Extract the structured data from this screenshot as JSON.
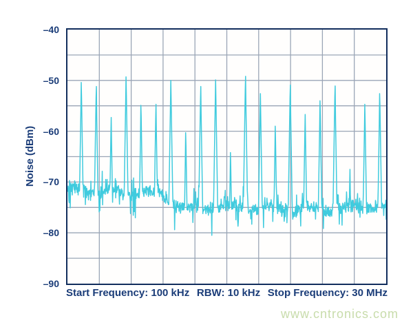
{
  "chart_data": {
    "type": "line",
    "title": "",
    "ylabel": "Noise (dBm)",
    "xlabel": "",
    "ylim": [
      -90,
      -40
    ],
    "y_tick_labels": [
      "–40",
      "–50",
      "–60",
      "–70",
      "–80",
      "–90"
    ],
    "y_divisions": 10,
    "x_divisions": 10,
    "grid": true,
    "x_range_mhz": [
      0.1,
      30
    ],
    "caption": {
      "start": "Start Frequency: 100 kHz",
      "rbw": "RBW: 10 kHz",
      "stop": "Stop Frequency: 30 MHz"
    },
    "noise_floor": {
      "left_mean_dbm": -72.0,
      "right_mean_dbm": -75.1,
      "transition_mhz": [
        9.0,
        11.0
      ],
      "typical_variation_db": 1.6,
      "min_dbm": -80.5
    },
    "spur_spacing_mhz": 1.4,
    "spur_skirt_db_per_mhz": 130,
    "spurs": [
      {
        "freq_mhz": 1.4,
        "level_dbm": -50.4
      },
      {
        "freq_mhz": 2.8,
        "level_dbm": -51.2
      },
      {
        "freq_mhz": 4.2,
        "level_dbm": -57.3
      },
      {
        "freq_mhz": 5.6,
        "level_dbm": -49.3
      },
      {
        "freq_mhz": 7.0,
        "level_dbm": -54.9
      },
      {
        "freq_mhz": 8.4,
        "level_dbm": -54.7
      },
      {
        "freq_mhz": 9.8,
        "level_dbm": -50.0
      },
      {
        "freq_mhz": 11.2,
        "level_dbm": -60.3
      },
      {
        "freq_mhz": 12.6,
        "level_dbm": -51.2
      },
      {
        "freq_mhz": 14.0,
        "level_dbm": -49.9
      },
      {
        "freq_mhz": 15.4,
        "level_dbm": -64.2
      },
      {
        "freq_mhz": 16.8,
        "level_dbm": -49.2
      },
      {
        "freq_mhz": 18.2,
        "level_dbm": -52.6
      },
      {
        "freq_mhz": 19.6,
        "level_dbm": -59.0
      },
      {
        "freq_mhz": 21.0,
        "level_dbm": -50.9
      },
      {
        "freq_mhz": 22.4,
        "level_dbm": -56.7
      },
      {
        "freq_mhz": 23.8,
        "level_dbm": -54.0
      },
      {
        "freq_mhz": 25.2,
        "level_dbm": -51.1
      },
      {
        "freq_mhz": 26.6,
        "level_dbm": -67.5
      },
      {
        "freq_mhz": 28.0,
        "level_dbm": -54.7
      },
      {
        "freq_mhz": 29.4,
        "level_dbm": -52.6
      }
    ],
    "colors": {
      "trace": "#40cbde",
      "grid": "#9aa5b6",
      "frame": "#112d5c",
      "text": "#1a3c78"
    },
    "legend": null
  },
  "watermark": {
    "text": "www.cntronics.com",
    "color": "#c8dcab"
  }
}
